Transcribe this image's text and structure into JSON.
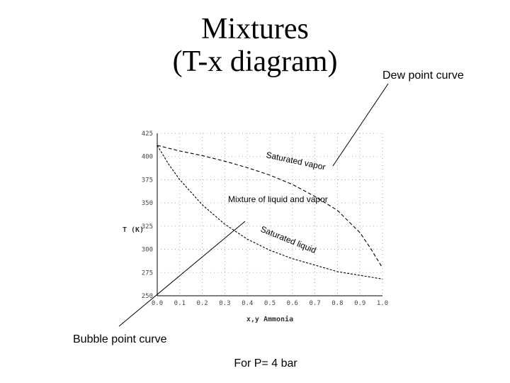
{
  "title_line1": "Mixtures",
  "title_line2": "(T-x diagram)",
  "callouts": {
    "dew": "Dew point curve",
    "bubble": "Bubble point curve"
  },
  "footer": "For P= 4 bar",
  "chart_data": {
    "type": "line",
    "xlabel": "x,y Ammonia",
    "ylabel": "T (K)",
    "xlim": [
      0.0,
      1.0
    ],
    "ylim": [
      250,
      425
    ],
    "x_ticks": [
      "0.0",
      "0.1",
      "0.2",
      "0.3",
      "0.4",
      "0.5",
      "0.6",
      "0.7",
      "0.8",
      "0.9",
      "1.0"
    ],
    "y_ticks": [
      "425",
      "400",
      "375",
      "350",
      "325",
      "300",
      "275",
      "250"
    ],
    "grid": "dotted",
    "annotations": {
      "saturated_vapor": "Saturated vapor",
      "mixture_region": "Mixture of liquid and vapor",
      "saturated_liquid": "Saturated liquid"
    },
    "series": [
      {
        "x": [
          0.0,
          0.1,
          0.2,
          0.3,
          0.4,
          0.5,
          0.6,
          0.7,
          0.8,
          0.9,
          0.95,
          0.98,
          1.0
        ],
        "y": [
          412,
          406,
          401,
          395,
          388,
          380,
          370,
          357,
          342,
          318,
          300,
          288,
          280
        ]
      },
      {
        "x": [
          0.0,
          0.05,
          0.1,
          0.2,
          0.3,
          0.4,
          0.5,
          0.6,
          0.7,
          0.8,
          0.9,
          1.0
        ],
        "y": [
          412,
          392,
          375,
          348,
          327,
          311,
          299,
          290,
          283,
          276,
          272,
          268
        ]
      }
    ]
  }
}
